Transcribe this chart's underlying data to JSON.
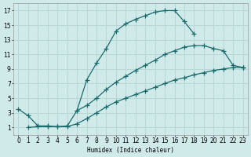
{
  "xlabel": "Humidex (Indice chaleur)",
  "background_color": "#d0eaea",
  "grid_color": "#b8d8d8",
  "line_color": "#1a6b6b",
  "xlim": [
    -0.5,
    23.5
  ],
  "ylim": [
    0,
    18
  ],
  "xticks": [
    0,
    1,
    2,
    3,
    4,
    5,
    6,
    7,
    8,
    9,
    10,
    11,
    12,
    13,
    14,
    15,
    16,
    17,
    18,
    19,
    20,
    21,
    22,
    23
  ],
  "yticks": [
    1,
    3,
    5,
    7,
    9,
    11,
    13,
    15,
    17
  ],
  "curve1_x": [
    0,
    1,
    2,
    3,
    4,
    5,
    6,
    7,
    8,
    9,
    10,
    11,
    12,
    13,
    14,
    15,
    16,
    17,
    18
  ],
  "curve1_y": [
    3.5,
    2.6,
    1.2,
    1.2,
    1.1,
    1.2,
    3.3,
    7.5,
    9.8,
    11.8,
    14.2,
    15.2,
    15.8,
    16.3,
    16.8,
    17.0,
    17.0,
    15.5,
    13.8
  ],
  "curve2_x": [
    6,
    7,
    8,
    9,
    10,
    11,
    12,
    13,
    14,
    15,
    16,
    17,
    18,
    19,
    20,
    21,
    22,
    23
  ],
  "curve2_y": [
    3.3,
    4.0,
    5.0,
    6.2,
    7.2,
    8.0,
    8.8,
    9.5,
    10.2,
    11.0,
    11.5,
    12.0,
    12.2,
    12.2,
    11.8,
    11.5,
    9.5,
    9.2
  ],
  "curve3_x": [
    1,
    2,
    3,
    4,
    5,
    6,
    7,
    8,
    9,
    10,
    11,
    12,
    13,
    14,
    15,
    16,
    17,
    18,
    19,
    20,
    21,
    22,
    23
  ],
  "curve3_y": [
    1.0,
    1.1,
    1.1,
    1.1,
    1.1,
    1.5,
    2.2,
    3.0,
    3.8,
    4.5,
    5.0,
    5.5,
    6.0,
    6.5,
    7.0,
    7.5,
    7.8,
    8.2,
    8.5,
    8.8,
    9.0,
    9.2,
    9.2
  ]
}
